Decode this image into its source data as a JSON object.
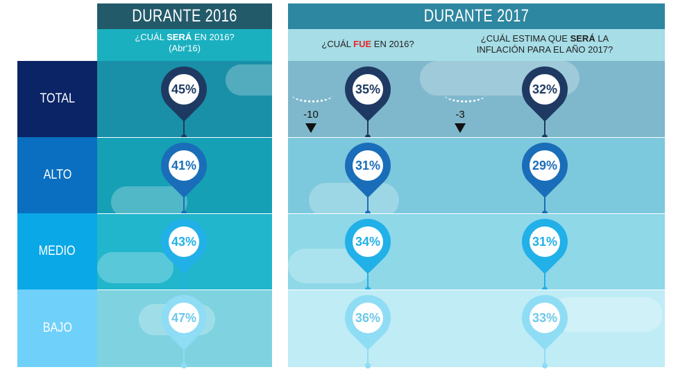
{
  "section_2016": {
    "title": "DURANTE 2016",
    "question_pre": "¿CUÁL ",
    "question_bold": "SERÁ",
    "question_post": " EN 2016?",
    "note": "(Abr'16)"
  },
  "section_2017": {
    "title": "DURANTE 2017",
    "q1_pre": "¿CUÁL ",
    "q1_bold": "FUE",
    "q1_post": " EN 2016?",
    "q2_pre": "¿CUÁL ESTIMA QUE ",
    "q2_bold": "SERÁ",
    "q2_post": " LA",
    "q2_line2": "INFLACIÓN PARA EL AÑO 2017?"
  },
  "rows": [
    {
      "label": "TOTAL",
      "v2016": "45%",
      "fue2016": "35%",
      "sera2017": "32%"
    },
    {
      "label": "ALTO",
      "v2016": "41%",
      "fue2016": "31%",
      "sera2017": "29%"
    },
    {
      "label": "MEDIO",
      "v2016": "43%",
      "fue2016": "34%",
      "sera2017": "31%"
    },
    {
      "label": "BAJO",
      "v2016": "47%",
      "fue2016": "36%",
      "sera2017": "33%"
    }
  ],
  "differences": {
    "d1": "-10",
    "d2": "-3"
  },
  "colors": {
    "accent_red": "#e8232a",
    "navy": "#1f3a62"
  }
}
